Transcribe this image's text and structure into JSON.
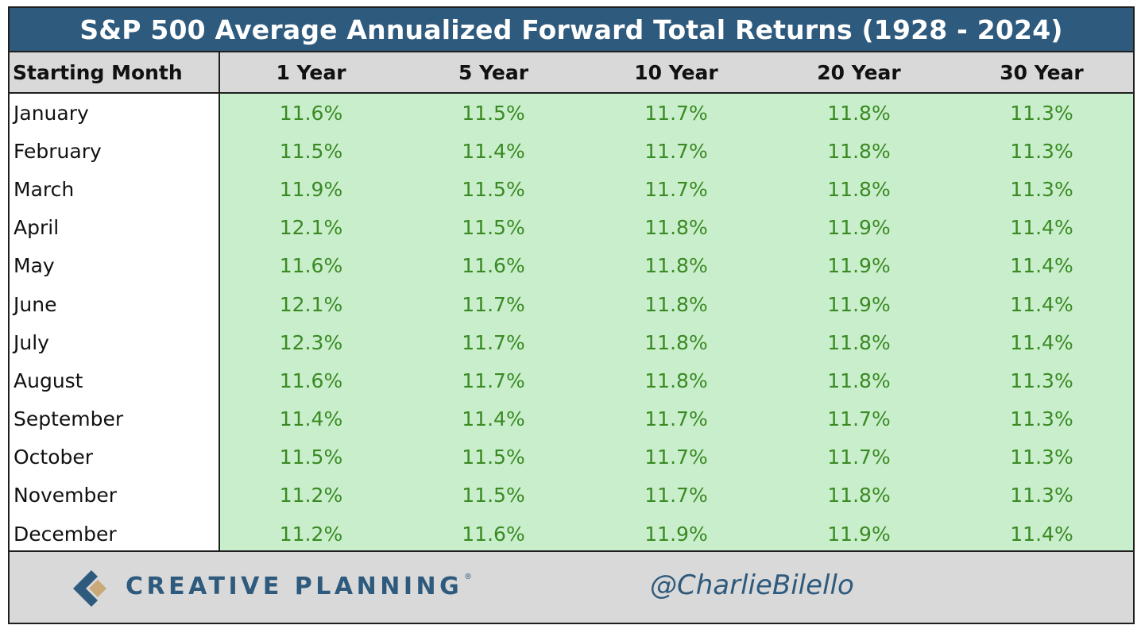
{
  "title": "S&P 500 Average Annualized Forward Total Returns (1928 - 2024)",
  "colors": {
    "title_bg": "#2e5a7d",
    "header_bg": "#d9d9d9",
    "cell_bg": "#c9eecc",
    "value_text": "#3a8a23",
    "brand": "#2e5a7d",
    "logo_accent": "#c8a977"
  },
  "chart_data": {
    "type": "table",
    "title": "S&P 500 Average Annualized Forward Total Returns (1928 - 2024)",
    "columns": [
      "Starting Month",
      "1 Year",
      "5 Year",
      "10 Year",
      "20 Year",
      "30 Year"
    ],
    "rows": [
      [
        "January",
        "11.6%",
        "11.5%",
        "11.7%",
        "11.8%",
        "11.3%"
      ],
      [
        "February",
        "11.5%",
        "11.4%",
        "11.7%",
        "11.8%",
        "11.3%"
      ],
      [
        "March",
        "11.9%",
        "11.5%",
        "11.7%",
        "11.8%",
        "11.3%"
      ],
      [
        "April",
        "12.1%",
        "11.5%",
        "11.8%",
        "11.9%",
        "11.4%"
      ],
      [
        "May",
        "11.6%",
        "11.6%",
        "11.8%",
        "11.9%",
        "11.4%"
      ],
      [
        "June",
        "12.1%",
        "11.7%",
        "11.8%",
        "11.9%",
        "11.4%"
      ],
      [
        "July",
        "12.3%",
        "11.7%",
        "11.8%",
        "11.8%",
        "11.4%"
      ],
      [
        "August",
        "11.6%",
        "11.7%",
        "11.8%",
        "11.8%",
        "11.3%"
      ],
      [
        "September",
        "11.4%",
        "11.4%",
        "11.7%",
        "11.7%",
        "11.3%"
      ],
      [
        "October",
        "11.5%",
        "11.5%",
        "11.7%",
        "11.7%",
        "11.3%"
      ],
      [
        "November",
        "11.2%",
        "11.5%",
        "11.7%",
        "11.8%",
        "11.3%"
      ],
      [
        "December",
        "11.2%",
        "11.6%",
        "11.9%",
        "11.9%",
        "11.4%"
      ]
    ]
  },
  "footer": {
    "brand": "CREATIVE PLANNING",
    "registered": "®",
    "handle": "@CharlieBilello",
    "logo_icon": "creative-planning-logo-icon"
  }
}
